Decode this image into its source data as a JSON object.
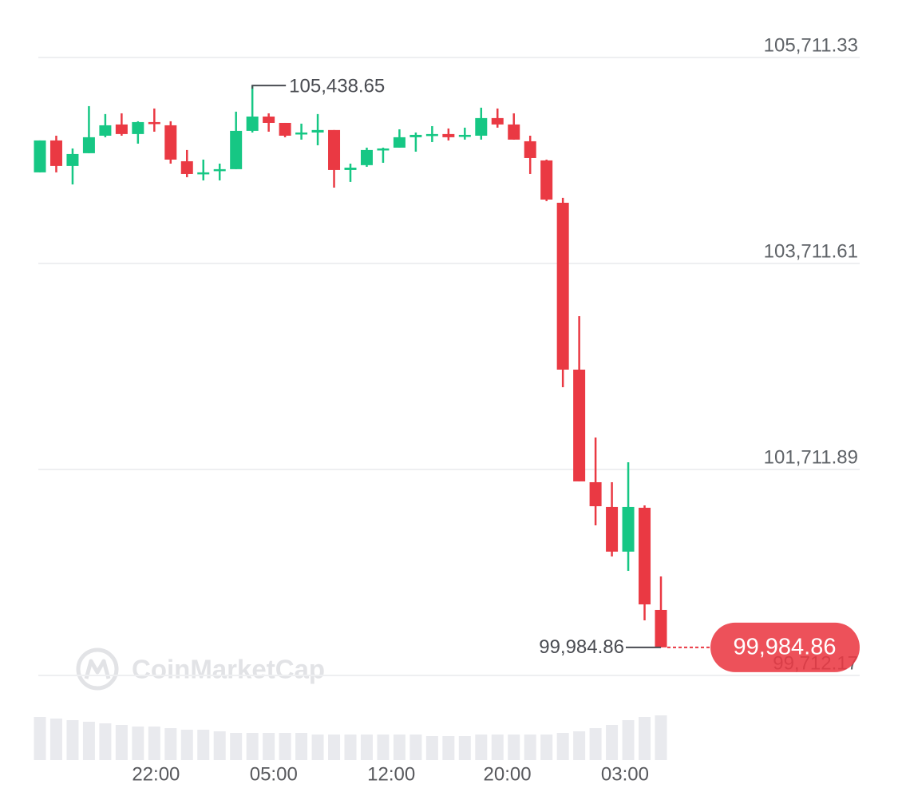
{
  "chart_data": {
    "type": "candlestick",
    "up_color": "#16c784",
    "down_color": "#ea3943",
    "grid": true,
    "watermark": "CoinMarketCap",
    "open": [
      104596,
      104906,
      104658,
      104782,
      104952,
      105061,
      104968,
      105084,
      105053,
      104704,
      104580,
      104611,
      104627,
      104999,
      105138,
      105076,
      104968,
      104983,
      105007,
      104619,
      104666,
      104813,
      104836,
      104937,
      104952,
      104968,
      104945,
      104952,
      105123,
      105061,
      104898,
      104712,
      104301,
      102681,
      101588,
      101348,
      100914,
      101340,
      100348
    ],
    "high": [
      104906,
      104952,
      104828,
      105239,
      105162,
      105169,
      105092,
      105216,
      105092,
      104813,
      104720,
      104681,
      105185,
      105438.65,
      105169,
      105076,
      105069,
      105162,
      105007,
      104681,
      104836,
      104836,
      105014,
      104983,
      105045,
      105022,
      105030,
      105224,
      105216,
      105169,
      104952,
      104720,
      104348,
      103200,
      102022,
      101588,
      101782,
      101363,
      100673
    ],
    "low": [
      104596,
      104596,
      104479,
      104782,
      104937,
      104952,
      104875,
      104991,
      104681,
      104549,
      104518,
      104518,
      104627,
      104983,
      104991,
      104937,
      104914,
      104859,
      104448,
      104503,
      104650,
      104689,
      104836,
      104797,
      104890,
      104906,
      104914,
      104914,
      105030,
      104914,
      104580,
      104317,
      102510,
      101596,
      101169,
      100867,
      100728,
      100247,
      99984.86
    ],
    "close": [
      104906,
      104658,
      104774,
      104937,
      105053,
      104968,
      105084,
      105069,
      104720,
      104580,
      104596,
      104627,
      104999,
      105138,
      105076,
      104952,
      104983,
      105007,
      104619,
      104642,
      104813,
      104828,
      104937,
      104960,
      104968,
      104937,
      104960,
      105123,
      105061,
      104914,
      104735,
      104332,
      102681,
      101596,
      101355,
      100914,
      101348,
      100402,
      99984.86
    ],
    "volume": [
      54,
      52,
      50,
      48,
      46,
      44,
      42,
      42,
      40,
      38,
      38,
      36,
      34,
      34,
      34,
      34,
      34,
      32,
      32,
      32,
      32,
      32,
      32,
      32,
      30,
      30,
      30,
      32,
      32,
      32,
      32,
      32,
      34,
      36,
      40,
      44,
      50,
      54,
      56
    ],
    "ylim": [
      99712.17,
      105711.33
    ],
    "yticks": [
      {
        "value": 99712.17,
        "label": "99,712.17"
      },
      {
        "value": 101711.89,
        "label": "101,711.89"
      },
      {
        "value": 103711.61,
        "label": "103,711.61"
      },
      {
        "value": 105711.33,
        "label": "105,711.33"
      }
    ],
    "xlim": [
      0,
      38
    ],
    "xticks": [
      {
        "value": 7.1,
        "label": "22:00"
      },
      {
        "value": 14.3,
        "label": "05:00"
      },
      {
        "value": 21.5,
        "label": "12:00"
      },
      {
        "value": 28.6,
        "label": "20:00"
      },
      {
        "value": 35.8,
        "label": "03:00"
      }
    ],
    "annotations": {
      "max_label": "105,438.65",
      "last_price_label": "99,984.86"
    }
  }
}
